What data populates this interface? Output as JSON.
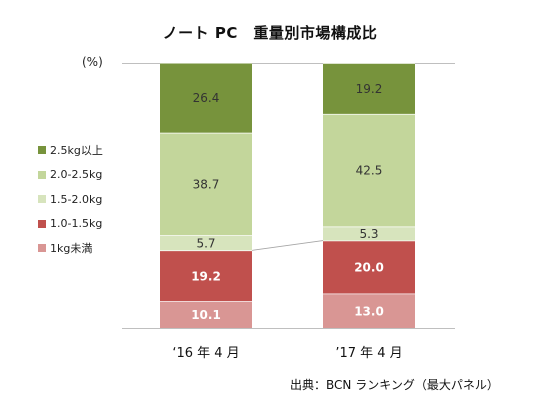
{
  "title": "ノート PC　重量別市場構成比",
  "unit_label": "(%)",
  "source": "出典：BCN ランキング（最大パネル）",
  "chart_data": {
    "type": "bar",
    "stacked": true,
    "categories": [
      "‘16 年 4 月",
      "’17 年 4 月"
    ],
    "series": [
      {
        "name": "1kg未満",
        "color": "#d99694",
        "values": [
          10.1,
          13.0
        ],
        "label_color": "#ffffff",
        "label_bold": true
      },
      {
        "name": "1.0-1.5kg",
        "color": "#c0504d",
        "values": [
          19.2,
          20.0
        ],
        "label_color": "#ffffff",
        "label_bold": true
      },
      {
        "name": "1.5-2.0kg",
        "color": "#d7e4bd",
        "values": [
          5.7,
          5.3
        ],
        "label_color": "#333333",
        "label_bold": false
      },
      {
        "name": "2.0-2.5kg",
        "color": "#c3d69b",
        "values": [
          38.7,
          42.5
        ],
        "label_color": "#333333",
        "label_bold": false
      },
      {
        "name": "2.5kg以上",
        "color": "#77933c",
        "values": [
          26.4,
          19.2
        ],
        "label_color": "#333333",
        "label_bold": false
      }
    ],
    "ylim": [
      0,
      100
    ],
    "legend_position": "left",
    "grid": false,
    "connector_line_between": [
      "1.0-1.5kg",
      "1.5-2.0kg"
    ]
  }
}
